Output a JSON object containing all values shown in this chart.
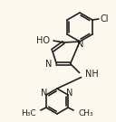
{
  "bg_color": "#fdf8ee",
  "line_color": "#222222",
  "line_width": 1.2,
  "font_size": 7.0
}
